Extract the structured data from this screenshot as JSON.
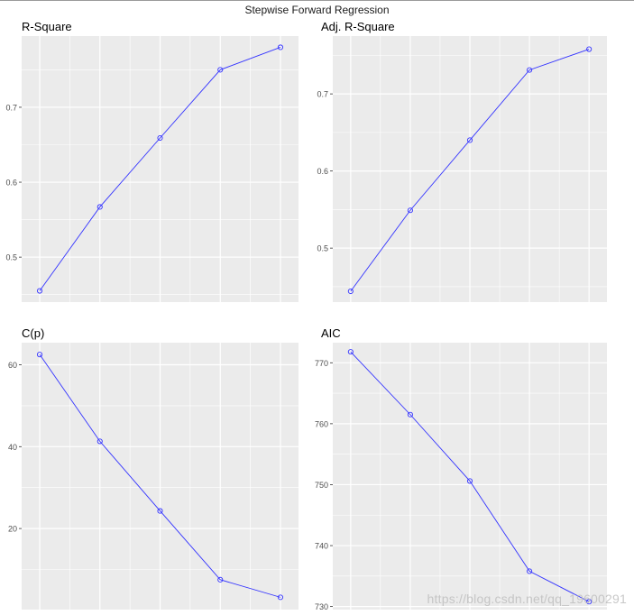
{
  "title": "Stepwise Forward Regression",
  "watermark": "https://blog.csdn.net/qq_19600291",
  "colors": {
    "panel": "#ebebeb",
    "grid": "#ffffff",
    "line": "#3333ff",
    "text": "#4d4d4d"
  },
  "chart_data": [
    {
      "type": "line",
      "title": "R-Square",
      "x": [
        1,
        2,
        3,
        4,
        5
      ],
      "values": [
        0.455,
        0.567,
        0.659,
        0.75,
        0.78
      ],
      "xlim": [
        0.7,
        5.3
      ],
      "ylim": [
        0.44,
        0.795
      ],
      "yticks": [
        0.5,
        0.6,
        0.7
      ],
      "yticklabels": [
        "0.5",
        "0.6",
        "0.7"
      ],
      "grid": true
    },
    {
      "type": "line",
      "title": "Adj. R-Square",
      "x": [
        1,
        2,
        3,
        4,
        5
      ],
      "values": [
        0.444,
        0.549,
        0.64,
        0.731,
        0.758
      ],
      "xlim": [
        0.7,
        5.3
      ],
      "ylim": [
        0.43,
        0.775
      ],
      "yticks": [
        0.5,
        0.6,
        0.7
      ],
      "yticklabels": [
        "0.5",
        "0.6",
        "0.7"
      ],
      "grid": true
    },
    {
      "type": "line",
      "title": "C(p)",
      "x": [
        1,
        2,
        3,
        4,
        5
      ],
      "values": [
        62.5,
        41.3,
        24.3,
        7.5,
        3.2
      ],
      "xlim": [
        0.7,
        5.3
      ],
      "ylim": [
        0.2,
        65.4
      ],
      "yticks": [
        20,
        40,
        60
      ],
      "yticklabels": [
        "20",
        "40",
        "60"
      ],
      "grid": true
    },
    {
      "type": "line",
      "title": "AIC",
      "x": [
        1,
        2,
        3,
        4,
        5
      ],
      "values": [
        771.8,
        761.5,
        750.6,
        735.8,
        730.8
      ],
      "xlim": [
        0.7,
        5.3
      ],
      "ylim": [
        729.5,
        773.3
      ],
      "yticks": [
        730,
        740,
        750,
        760,
        770
      ],
      "yticklabels": [
        "730",
        "740",
        "750",
        "760",
        "770"
      ],
      "grid": true
    }
  ]
}
